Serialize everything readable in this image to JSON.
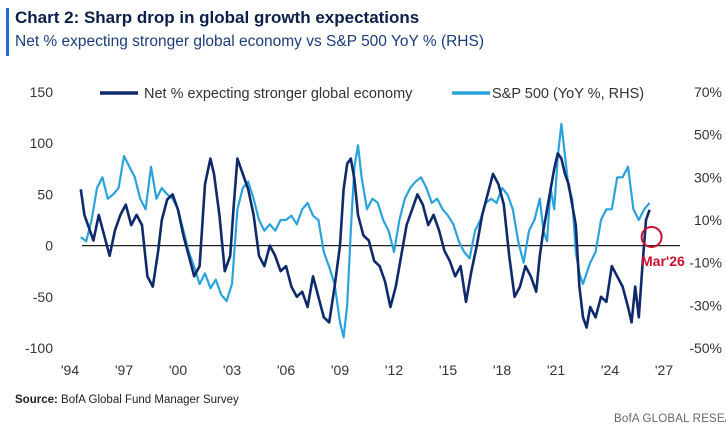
{
  "chart_data": {
    "type": "line",
    "title": "Chart 2: Sharp drop in global growth expectations",
    "subtitle": "Net % expecting stronger global economy vs S&P 500 YoY % (RHS)",
    "x_ticks": [
      "'94",
      "'97",
      "'00",
      "'03",
      "'06",
      "'09",
      "'12",
      "'15",
      "'18",
      "'21",
      "'24",
      "'27"
    ],
    "x_tick_years": [
      1994,
      1997,
      2000,
      2003,
      2006,
      2009,
      2012,
      2015,
      2018,
      2021,
      2024,
      2027
    ],
    "xlim": [
      1994,
      2027
    ],
    "y_left": {
      "ticks": [
        "150",
        "100",
        "50",
        "0",
        "-50",
        "-100"
      ],
      "tick_values": [
        150,
        100,
        50,
        0,
        -50,
        -100
      ],
      "ylim": [
        -100,
        150
      ]
    },
    "y_right": {
      "ticks": [
        "70%",
        "50%",
        "30%",
        "10%",
        "-10%",
        "-30%",
        "-50%"
      ],
      "tick_values": [
        70,
        50,
        30,
        10,
        -10,
        -30,
        -50
      ],
      "ylim": [
        -50,
        70
      ]
    },
    "series": [
      {
        "name": "Net % expecting stronger global economy",
        "axis": "left",
        "color": "#0f2a6b",
        "x": [
          1994.6,
          1994.8,
          1995.0,
          1995.3,
          1995.6,
          1995.9,
          1996.2,
          1996.5,
          1996.8,
          1997.1,
          1997.4,
          1997.7,
          1998.0,
          1998.3,
          1998.6,
          1998.9,
          1999.1,
          1999.4,
          1999.7,
          2000.0,
          2000.3,
          2000.6,
          2000.9,
          2001.2,
          2001.5,
          2001.8,
          2002.0,
          2002.3,
          2002.6,
          2002.9,
          2003.1,
          2003.3,
          2003.6,
          2003.9,
          2004.2,
          2004.5,
          2004.8,
          2005.1,
          2005.4,
          2005.7,
          2006.0,
          2006.3,
          2006.6,
          2006.9,
          2007.2,
          2007.5,
          2007.8,
          2008.1,
          2008.4,
          2008.7,
          2009.0,
          2009.2,
          2009.4,
          2009.6,
          2009.8,
          2010.0,
          2010.3,
          2010.6,
          2010.9,
          2011.2,
          2011.5,
          2011.8,
          2012.1,
          2012.4,
          2012.7,
          2013.0,
          2013.3,
          2013.6,
          2013.9,
          2014.2,
          2014.5,
          2014.8,
          2015.1,
          2015.4,
          2015.7,
          2016.0,
          2016.3,
          2016.6,
          2016.9,
          2017.2,
          2017.5,
          2017.8,
          2018.1,
          2018.4,
          2018.7,
          2019.0,
          2019.3,
          2019.6,
          2019.9,
          2020.1,
          2020.3,
          2020.5,
          2020.7,
          2020.9,
          2021.1,
          2021.3,
          2021.5,
          2021.7,
          2021.9,
          2022.1,
          2022.3,
          2022.5,
          2022.7,
          2022.9,
          2023.2,
          2023.5,
          2023.8,
          2024.1,
          2024.4,
          2024.7,
          2025.0,
          2025.2,
          2025.4,
          2025.6,
          2025.8,
          2026.0,
          2026.2
        ],
        "values": [
          55,
          30,
          20,
          5,
          30,
          10,
          -10,
          15,
          30,
          40,
          20,
          30,
          20,
          -30,
          -40,
          -5,
          25,
          45,
          50,
          35,
          10,
          -10,
          -30,
          -20,
          60,
          85,
          70,
          30,
          -25,
          -10,
          40,
          85,
          70,
          55,
          30,
          -10,
          -20,
          0,
          -10,
          -25,
          -20,
          -40,
          -50,
          -45,
          -60,
          -30,
          -50,
          -70,
          -75,
          -40,
          0,
          55,
          80,
          85,
          65,
          30,
          10,
          5,
          -15,
          -20,
          -35,
          -60,
          -40,
          -10,
          20,
          35,
          50,
          40,
          20,
          30,
          15,
          -5,
          -15,
          -30,
          -20,
          -55,
          -25,
          0,
          30,
          50,
          70,
          60,
          40,
          -10,
          -50,
          -40,
          -20,
          -30,
          -45,
          -10,
          15,
          35,
          55,
          75,
          90,
          85,
          70,
          60,
          40,
          20,
          -40,
          -70,
          -80,
          -60,
          -70,
          -50,
          -55,
          -20,
          -30,
          -40,
          -60,
          -75,
          -40,
          -70,
          -20,
          25,
          35
        ]
      },
      {
        "name": "S&P 500 (YoY %, RHS)",
        "axis": "right",
        "color": "#2aa3dc",
        "x": [
          1994.6,
          1994.9,
          1995.2,
          1995.5,
          1995.8,
          1996.1,
          1996.4,
          1996.7,
          1997.0,
          1997.3,
          1997.6,
          1997.9,
          1998.2,
          1998.5,
          1998.8,
          1999.1,
          1999.4,
          1999.7,
          2000.0,
          2000.3,
          2000.6,
          2000.9,
          2001.2,
          2001.5,
          2001.8,
          2002.1,
          2002.4,
          2002.7,
          2003.0,
          2003.3,
          2003.6,
          2003.9,
          2004.2,
          2004.5,
          2004.8,
          2005.1,
          2005.4,
          2005.7,
          2006.0,
          2006.3,
          2006.6,
          2006.9,
          2007.2,
          2007.5,
          2007.8,
          2008.1,
          2008.4,
          2008.7,
          2009.0,
          2009.2,
          2009.4,
          2009.6,
          2009.8,
          2010.0,
          2010.2,
          2010.5,
          2010.8,
          2011.1,
          2011.4,
          2011.7,
          2012.0,
          2012.3,
          2012.6,
          2012.9,
          2013.2,
          2013.5,
          2013.8,
          2014.1,
          2014.4,
          2014.7,
          2015.0,
          2015.3,
          2015.6,
          2015.9,
          2016.2,
          2016.5,
          2016.8,
          2017.1,
          2017.4,
          2017.7,
          2018.0,
          2018.3,
          2018.6,
          2018.9,
          2019.2,
          2019.5,
          2019.8,
          2020.1,
          2020.3,
          2020.5,
          2020.7,
          2020.9,
          2021.1,
          2021.3,
          2021.5,
          2021.7,
          2021.9,
          2022.1,
          2022.3,
          2022.5,
          2022.7,
          2022.9,
          2023.2,
          2023.5,
          2023.8,
          2024.1,
          2024.4,
          2024.7,
          2025.0,
          2025.3,
          2025.6,
          2025.9,
          2026.2
        ],
        "values": [
          2,
          0,
          10,
          25,
          30,
          20,
          22,
          25,
          40,
          35,
          30,
          20,
          15,
          35,
          20,
          25,
          22,
          20,
          15,
          5,
          -5,
          -12,
          -20,
          -15,
          -22,
          -18,
          -25,
          -28,
          -20,
          15,
          25,
          28,
          20,
          10,
          5,
          8,
          5,
          10,
          10,
          12,
          8,
          15,
          18,
          12,
          10,
          -5,
          -12,
          -20,
          -38,
          -45,
          -30,
          5,
          35,
          45,
          30,
          15,
          20,
          18,
          10,
          5,
          -5,
          10,
          20,
          25,
          28,
          30,
          25,
          18,
          20,
          15,
          12,
          8,
          0,
          -5,
          -8,
          5,
          10,
          18,
          20,
          18,
          25,
          22,
          15,
          0,
          -10,
          5,
          10,
          20,
          5,
          0,
          25,
          15,
          40,
          55,
          40,
          25,
          20,
          -5,
          -15,
          -20,
          -15,
          -10,
          -5,
          10,
          15,
          15,
          30,
          30,
          35,
          15,
          10,
          15,
          18
        ]
      }
    ],
    "annotation": {
      "label": "Mar'26",
      "x": 2026.2,
      "value": 2,
      "color": "#c8102e"
    },
    "zero_line": true,
    "legend_position": "top",
    "source_label": "Source:",
    "source_text": "BofA Global Fund Manager Survey",
    "footer": "BofA GLOBAL RESEAI"
  }
}
